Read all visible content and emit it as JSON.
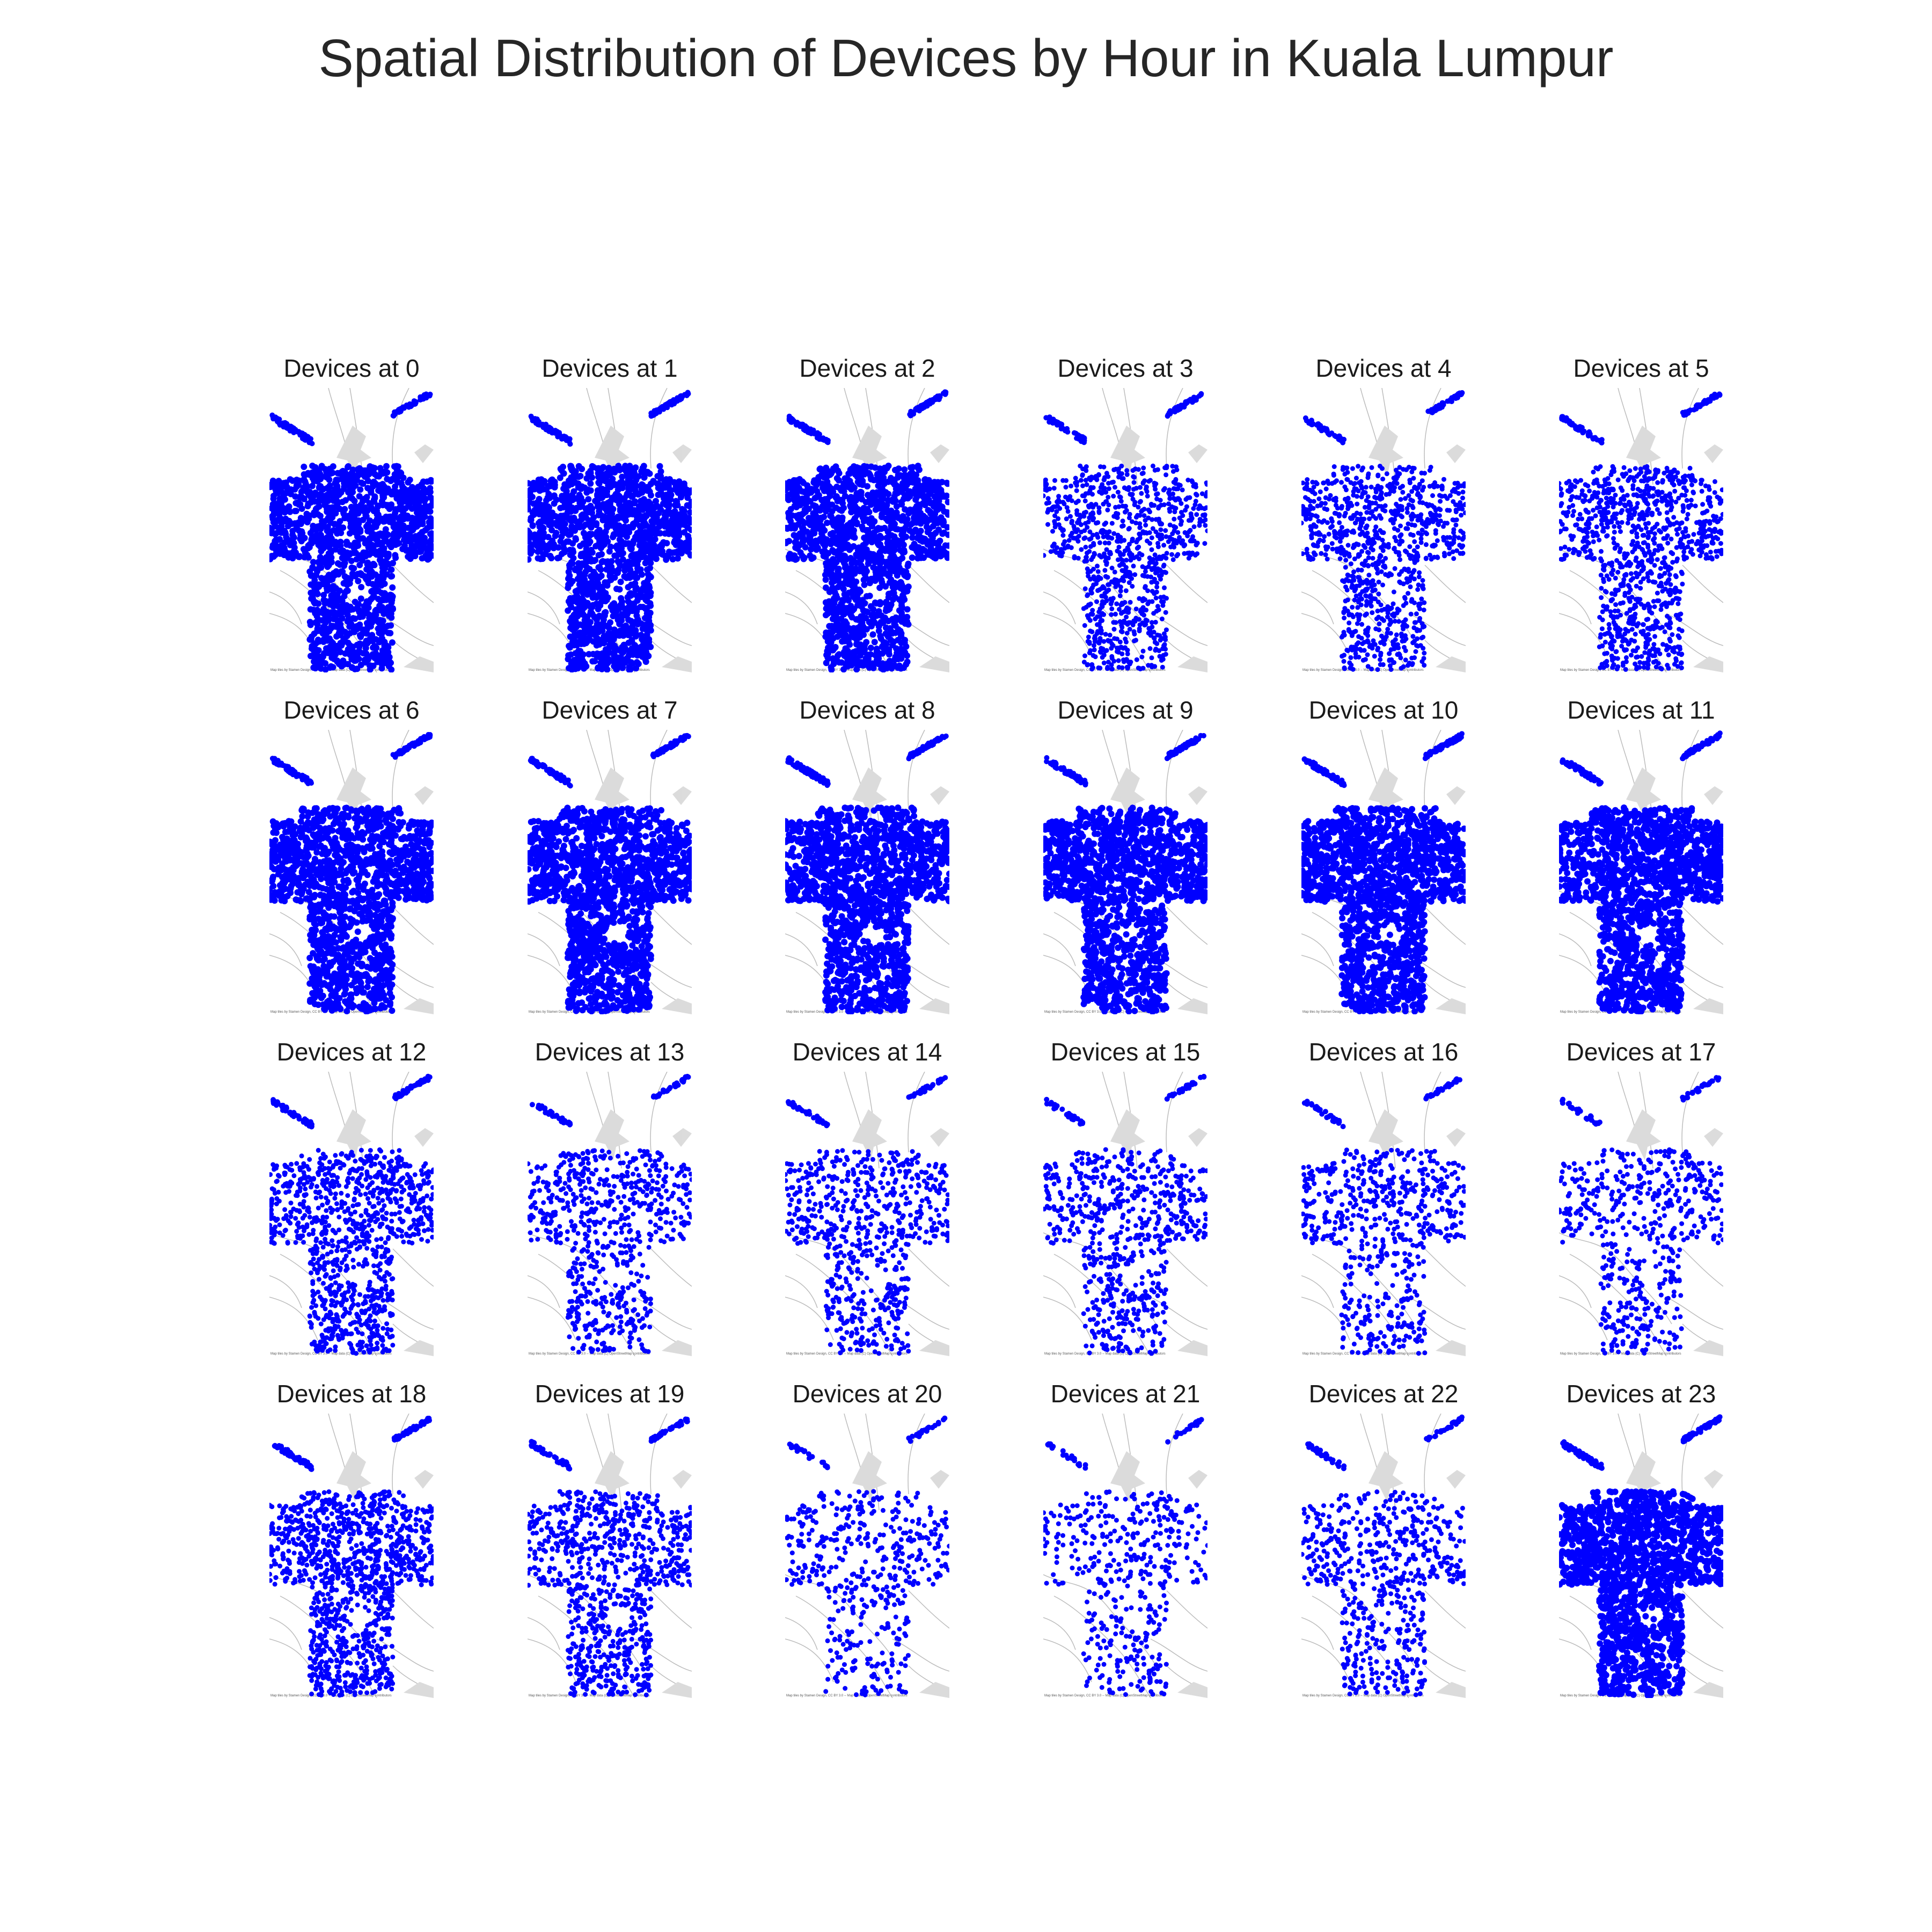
{
  "title": "Spatial Distribution of Devices by Hour in Kuala Lumpur",
  "attribution": "Map tiles by Stamen Design, CC BY 3.0 -- Map data (C) OpenStreetMap contributors",
  "point_color": "#0000ff",
  "chart_data": {
    "type": "scatter",
    "title": "Spatial Distribution of Devices by Hour in Kuala Lumpur",
    "grid": false,
    "legend": "none",
    "panels": [
      {
        "hour": 0,
        "label": "Devices at 0",
        "density": 0.95
      },
      {
        "hour": 1,
        "label": "Devices at 1",
        "density": 0.95
      },
      {
        "hour": 2,
        "label": "Devices at 2",
        "density": 0.9
      },
      {
        "hour": 3,
        "label": "Devices at 3",
        "density": 0.55
      },
      {
        "hour": 4,
        "label": "Devices at 4",
        "density": 0.55
      },
      {
        "hour": 5,
        "label": "Devices at 5",
        "density": 0.6
      },
      {
        "hour": 6,
        "label": "Devices at 6",
        "density": 0.95
      },
      {
        "hour": 7,
        "label": "Devices at 7",
        "density": 0.95
      },
      {
        "hour": 8,
        "label": "Devices at 8",
        "density": 0.95
      },
      {
        "hour": 9,
        "label": "Devices at 9",
        "density": 0.95
      },
      {
        "hour": 10,
        "label": "Devices at 10",
        "density": 0.98
      },
      {
        "hour": 11,
        "label": "Devices at 11",
        "density": 0.98
      },
      {
        "hour": 12,
        "label": "Devices at 12",
        "density": 0.6
      },
      {
        "hour": 13,
        "label": "Devices at 13",
        "density": 0.35
      },
      {
        "hour": 14,
        "label": "Devices at 14",
        "density": 0.35
      },
      {
        "hour": 15,
        "label": "Devices at 15",
        "density": 0.35
      },
      {
        "hour": 16,
        "label": "Devices at 16",
        "density": 0.3
      },
      {
        "hour": 17,
        "label": "Devices at 17",
        "density": 0.25
      },
      {
        "hour": 18,
        "label": "Devices at 18",
        "density": 0.7
      },
      {
        "hour": 19,
        "label": "Devices at 19",
        "density": 0.5
      },
      {
        "hour": 20,
        "label": "Devices at 20",
        "density": 0.2
      },
      {
        "hour": 21,
        "label": "Devices at 21",
        "density": 0.18
      },
      {
        "hour": 22,
        "label": "Devices at 22",
        "density": 0.3
      },
      {
        "hour": 23,
        "label": "Devices at 23",
        "density": 0.95
      }
    ]
  }
}
